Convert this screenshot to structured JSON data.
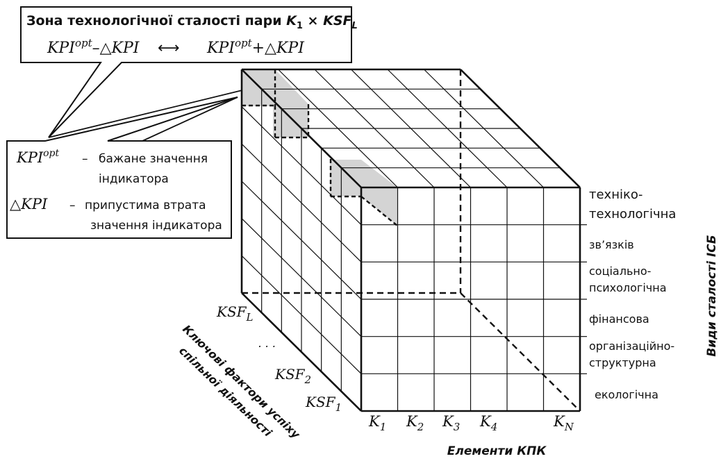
{
  "title": {
    "prefix": "Зона технологічної сталості пари ",
    "k": "K",
    "k_sub": "1",
    "times": " × ",
    "ksf": "KSF",
    "ksf_sub": "L"
  },
  "range": {
    "left_base": "KPI",
    "left_sup": "opt",
    "left_tail": "–△KPI",
    "arrow": "⟷",
    "right_base": "KPI",
    "right_sup": "opt",
    "right_tail": "+△KPI"
  },
  "legend": {
    "opt_base": "KPI",
    "opt_sup": "opt",
    "opt_dash": "–",
    "opt_line1": "бажане значення",
    "opt_line2": "індикатора",
    "delta_term": "△KPI",
    "delta_dash": "–",
    "delta_line1": "припустима втрата",
    "delta_line2": "значення індикатора"
  },
  "stability_types": [
    "техніко-",
    "технологічна",
    "зв’язків",
    "соціально-",
    "психологічна",
    "фінансова",
    "організаційно-",
    "структурна",
    "екологічна"
  ],
  "right_axis_title": "Види сталості ІСБ",
  "elements": [
    {
      "base": "K",
      "sub": "1"
    },
    {
      "base": "K",
      "sub": "2"
    },
    {
      "base": "K",
      "sub": "3"
    },
    {
      "base": "K",
      "sub": "4"
    },
    {
      "base": "K",
      "sub": "N"
    }
  ],
  "bottom_axis_title": "Елементи КПК",
  "ksf_labels": [
    {
      "base": "KSF",
      "sub": "L"
    },
    {
      "base": "KSF",
      "sub": "2"
    },
    {
      "base": "KSF",
      "sub": "1"
    }
  ],
  "ksf_ellipsis": ". . .",
  "left_axis_title": [
    "Ключові фактори успіху",
    "спільної діяльності"
  ]
}
